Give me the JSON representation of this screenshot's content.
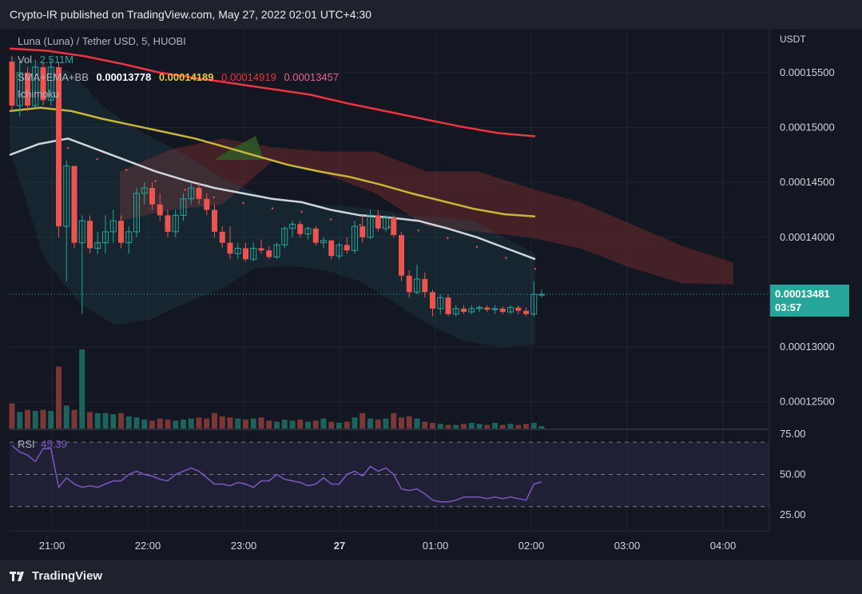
{
  "header": {
    "published": "Crypto-IR published on TradingView.com, May 27, 2022 02:01 UTC+4:30"
  },
  "footer": {
    "brand": "TradingView"
  },
  "legend": {
    "symbol": "Luna  (Luna)   / Tether USD, 5, HUOBI",
    "vol_label": "Vol",
    "vol_value": "2.511M",
    "indicator_label": "SMA+EMA+BB",
    "sma": "0.00013778",
    "ema": "0.00014189",
    "bb_upper": "0.00014919",
    "bb_lower": "0.00013457",
    "ichimoku": "Ichimoku",
    "rsi_label": "RSI",
    "rsi_value": "45.39"
  },
  "price_tag": {
    "price": "0.00013481",
    "countdown": "03:57"
  },
  "colors": {
    "up": "#26a69a",
    "down": "#ef5350",
    "sma": "#d1d4dc",
    "ema": "#c9b538",
    "ema200": "#ef3340",
    "rsi": "#7e57c2",
    "cloud_red": "#6b2a2a",
    "cloud_green": "#2e5e2a"
  },
  "chart_data": [
    {
      "type": "candlestick",
      "title": "Luna / Tether USD, 5, HUOBI",
      "ylabel": "USDT",
      "ylim": [
        0.0001225,
        0.000159
      ],
      "y_ticks": [
        "0.00015500",
        "0.00015000",
        "0.00014500",
        "0.00014000",
        "0.00013000",
        "0.00012500"
      ],
      "y_tick_values": [
        0.000155,
        0.00015,
        0.000145,
        0.00014,
        0.00013,
        0.000125
      ],
      "x_labels": [
        "21:00",
        "22:00",
        "23:00",
        "27",
        "01:00",
        "02:00",
        "03:00",
        "04:00"
      ],
      "x_label_minutes": [
        0,
        60,
        120,
        180,
        240,
        300,
        360,
        420
      ],
      "last_price": 0.00013481,
      "candles_ohlc": [
        [
          0.000156,
          0.0001565,
          0.0001515,
          0.000152
        ],
        [
          0.000152,
          0.000156,
          0.000151,
          0.000155
        ],
        [
          0.000155,
          0.0001555,
          0.0001515,
          0.000152
        ],
        [
          0.000152,
          0.0001562,
          0.0001518,
          0.0001555
        ],
        [
          0.0001555,
          0.000156,
          0.000152,
          0.0001525
        ],
        [
          0.0001525,
          0.0001562,
          0.000152,
          0.0001555
        ],
        [
          0.0001555,
          0.000156,
          0.00014,
          0.000141
        ],
        [
          0.000141,
          0.000147,
          0.000136,
          0.0001465
        ],
        [
          0.0001465,
          0.0001465,
          0.000139,
          0.0001395
        ],
        [
          0.0001395,
          0.000142,
          0.000133,
          0.0001415
        ],
        [
          0.0001415,
          0.000142,
          0.0001385,
          0.000139
        ],
        [
          0.000139,
          0.0001405,
          0.0001385,
          0.0001395
        ],
        [
          0.0001395,
          0.000142,
          0.0001385,
          0.0001405
        ],
        [
          0.0001405,
          0.0001425,
          0.0001395,
          0.0001415
        ],
        [
          0.0001415,
          0.000142,
          0.000139,
          0.0001395
        ],
        [
          0.0001395,
          0.000141,
          0.0001385,
          0.0001405
        ],
        [
          0.0001405,
          0.0001445,
          0.00014,
          0.000144
        ],
        [
          0.000144,
          0.000145,
          0.000143,
          0.0001445
        ],
        [
          0.0001445,
          0.000145,
          0.0001425,
          0.000143
        ],
        [
          0.000143,
          0.000144,
          0.0001415,
          0.000142
        ],
        [
          0.000142,
          0.0001425,
          0.00014,
          0.0001405
        ],
        [
          0.0001405,
          0.0001425,
          0.00014,
          0.000142
        ],
        [
          0.000142,
          0.000144,
          0.0001415,
          0.0001435
        ],
        [
          0.0001435,
          0.000145,
          0.000143,
          0.0001445
        ],
        [
          0.0001445,
          0.000145,
          0.000143,
          0.0001435
        ],
        [
          0.0001435,
          0.000144,
          0.000142,
          0.0001425
        ],
        [
          0.0001425,
          0.000143,
          0.00014,
          0.0001405
        ],
        [
          0.0001405,
          0.000141,
          0.000139,
          0.0001395
        ],
        [
          0.0001395,
          0.000141,
          0.000138,
          0.0001385
        ],
        [
          0.0001385,
          0.0001395,
          0.000138,
          0.000139
        ],
        [
          0.000139,
          0.0001395,
          0.0001378,
          0.000138
        ],
        [
          0.000138,
          0.0001395,
          0.0001378,
          0.000139
        ],
        [
          0.000139,
          0.0001398,
          0.0001385,
          0.0001388
        ],
        [
          0.0001388,
          0.0001392,
          0.000138,
          0.0001382
        ],
        [
          0.0001382,
          0.0001395,
          0.000138,
          0.0001393
        ],
        [
          0.0001393,
          0.000141,
          0.000139,
          0.0001408
        ],
        [
          0.0001408,
          0.0001415,
          0.00014,
          0.0001412
        ],
        [
          0.0001412,
          0.0001415,
          0.00014,
          0.0001403
        ],
        [
          0.0001403,
          0.000141,
          0.0001398,
          0.0001408
        ],
        [
          0.0001408,
          0.000141,
          0.0001392,
          0.0001395
        ],
        [
          0.0001395,
          0.00014,
          0.000139,
          0.0001397
        ],
        [
          0.0001397,
          0.0001398,
          0.000138,
          0.0001383
        ],
        [
          0.0001383,
          0.0001395,
          0.000138,
          0.0001393
        ],
        [
          0.0001393,
          0.00014,
          0.0001385,
          0.0001388
        ],
        [
          0.0001388,
          0.0001415,
          0.0001385,
          0.000141
        ],
        [
          0.000141,
          0.000142,
          0.0001395,
          0.00014
        ],
        [
          0.00014,
          0.0001425,
          0.0001398,
          0.000142
        ],
        [
          0.000142,
          0.0001425,
          0.0001405,
          0.0001408
        ],
        [
          0.0001408,
          0.000142,
          0.0001405,
          0.0001418
        ],
        [
          0.0001418,
          0.000142,
          0.00014,
          0.0001402
        ],
        [
          0.0001402,
          0.0001405,
          0.000136,
          0.0001365
        ],
        [
          0.0001365,
          0.000137,
          0.0001345,
          0.000135
        ],
        [
          0.000135,
          0.0001375,
          0.0001348,
          0.0001362
        ],
        [
          0.0001362,
          0.0001368,
          0.0001345,
          0.000135
        ],
        [
          0.000135,
          0.0001352,
          0.0001328,
          0.0001335
        ],
        [
          0.0001335,
          0.0001348,
          0.000133,
          0.0001345
        ],
        [
          0.0001345,
          0.0001348,
          0.0001328,
          0.000133
        ],
        [
          0.000133,
          0.0001338,
          0.0001328,
          0.0001335
        ],
        [
          0.0001335,
          0.0001338,
          0.000133,
          0.0001332
        ],
        [
          0.0001332,
          0.0001338,
          0.000133,
          0.0001335
        ],
        [
          0.0001335,
          0.0001338,
          0.0001332,
          0.0001336
        ],
        [
          0.0001336,
          0.0001338,
          0.0001332,
          0.0001334
        ],
        [
          0.0001334,
          0.0001338,
          0.000133,
          0.0001335
        ],
        [
          0.0001335,
          0.0001337,
          0.000133,
          0.0001332
        ],
        [
          0.0001332,
          0.0001338,
          0.000133,
          0.0001336
        ],
        [
          0.0001336,
          0.0001338,
          0.000133,
          0.0001333
        ],
        [
          0.0001333,
          0.0001336,
          0.0001328,
          0.000133
        ],
        [
          0.000133,
          0.000136,
          0.0001328,
          0.0001348
        ],
        [
          0.0001348,
          0.0001352,
          0.0001345,
          0.0001348
        ]
      ],
      "sma_line": [
        0.0001475,
        0.0001485,
        0.000149,
        0.000148,
        0.000147,
        0.000146,
        0.0001452,
        0.0001445,
        0.000144,
        0.0001435,
        0.0001432,
        0.0001425,
        0.000142,
        0.0001418,
        0.0001415,
        0.0001408,
        0.00014,
        0.000139,
        0.000138
      ],
      "ema_line": [
        0.0001515,
        0.0001518,
        0.0001515,
        0.0001508,
        0.0001502,
        0.0001496,
        0.000149,
        0.0001482,
        0.0001474,
        0.0001466,
        0.000146,
        0.0001455,
        0.0001448,
        0.000144,
        0.0001433,
        0.0001426,
        0.0001421,
        0.0001419
      ],
      "ema200_line": [
        0.0001572,
        0.000157,
        0.0001565,
        0.0001558,
        0.000155,
        0.0001545,
        0.000154,
        0.0001535,
        0.000153,
        0.0001522,
        0.0001515,
        0.0001508,
        0.0001501,
        0.0001495,
        0.0001492
      ],
      "bb_upper_line": [
        0.0001565,
        0.000156,
        0.000155,
        0.000152,
        0.00015,
        0.0001485,
        0.000147,
        0.0001452,
        0.000144,
        0.0001432,
        0.000143,
        0.0001428,
        0.0001425,
        0.000142,
        0.0001418,
        0.0001415,
        0.00014,
        0.0001385
      ],
      "bb_lower_line": [
        0.000148,
        0.000138,
        0.000134,
        0.000132,
        0.0001325,
        0.000134,
        0.0001352,
        0.0001372,
        0.0001374,
        0.000137,
        0.000136,
        0.000134,
        0.000132,
        0.0001305,
        0.00013,
        0.0001302
      ],
      "ichimoku_cloud_top": [
        0.000146,
        0.000148,
        0.000149,
        0.0001482,
        0.0001478,
        0.0001478,
        0.000146,
        0.000146,
        0.0001445,
        0.0001432,
        0.0001412,
        0.0001392,
        0.0001377
      ],
      "ichimoku_cloud_bottom": [
        0.0001415,
        0.0001425,
        0.000143,
        0.000147,
        0.0001458,
        0.000144,
        0.000141,
        0.0001405,
        0.00014,
        0.000139,
        0.0001372,
        0.0001358,
        0.0001357
      ]
    },
    {
      "type": "bar",
      "title": "Vol",
      "value_label": "2.511M",
      "values": [
        1.2,
        0.8,
        0.9,
        0.85,
        0.9,
        0.85,
        2.9,
        1.1,
        0.9,
        3.7,
        0.8,
        0.75,
        0.75,
        0.7,
        0.75,
        0.6,
        0.55,
        0.45,
        0.4,
        0.5,
        0.45,
        0.4,
        0.45,
        0.5,
        0.55,
        0.5,
        0.75,
        0.6,
        0.55,
        0.5,
        0.45,
        0.5,
        0.55,
        0.4,
        0.35,
        0.45,
        0.4,
        0.45,
        0.35,
        0.4,
        0.5,
        0.35,
        0.3,
        0.35,
        0.55,
        0.75,
        0.5,
        0.45,
        0.5,
        0.75,
        0.55,
        0.6,
        0.5,
        0.35,
        0.3,
        0.25,
        0.2,
        0.2,
        0.25,
        0.3,
        0.25,
        0.2,
        0.3,
        0.2,
        0.25,
        0.2,
        0.25,
        0.3,
        0.15
      ]
    },
    {
      "type": "line",
      "title": "RSI",
      "value_label": "45.39",
      "ylim": [
        15,
        78
      ],
      "y_ticks": [
        "75.00",
        "50.00",
        "25.00"
      ],
      "y_tick_values": [
        75,
        50,
        25
      ],
      "band": [
        30,
        70
      ],
      "values": [
        68,
        64,
        62,
        58,
        66,
        66,
        42,
        48,
        44,
        42,
        43,
        42,
        44,
        46,
        46,
        50,
        52,
        50,
        49,
        47,
        46,
        50,
        52,
        54,
        52,
        48,
        44,
        44,
        43,
        45,
        44,
        42,
        46,
        46,
        50,
        47,
        46,
        45,
        43,
        44,
        48,
        44,
        44,
        50,
        52,
        49,
        55,
        52,
        54,
        50,
        41,
        40,
        41,
        38,
        34,
        33,
        33,
        34,
        36,
        36,
        36,
        35,
        36,
        35,
        36,
        35,
        34,
        44,
        45.39
      ]
    }
  ]
}
